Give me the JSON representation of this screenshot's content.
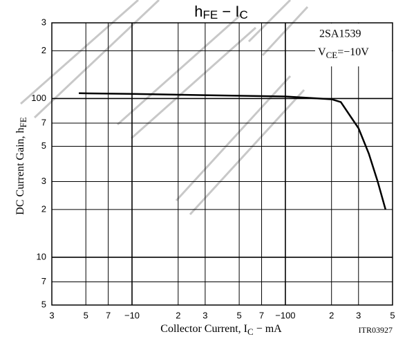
{
  "chart_data": {
    "type": "line",
    "title": [
      "h",
      "FE",
      " − I",
      "C"
    ],
    "annotations": {
      "device": "2SA1539",
      "condition": [
        "V",
        "CE",
        "=−10V"
      ]
    },
    "y_label": [
      "DC Current Gain, h",
      "FE"
    ],
    "x_label": [
      "Collector Current, I",
      "C",
      " − mA"
    ],
    "code": "ITR03927",
    "log_x": true,
    "log_y": true,
    "grid": true,
    "xlim": [
      -3,
      -500
    ],
    "xticks": [
      {
        "value": -3,
        "label": "3"
      },
      {
        "value": -5,
        "label": "5"
      },
      {
        "value": -7,
        "label": "7"
      },
      {
        "value": -10,
        "label": "−10"
      },
      {
        "value": -20,
        "label": "2"
      },
      {
        "value": -30,
        "label": "3"
      },
      {
        "value": -50,
        "label": "5"
      },
      {
        "value": -70,
        "label": "7"
      },
      {
        "value": -100,
        "label": "−100"
      },
      {
        "value": -200,
        "label": "2"
      },
      {
        "value": -300,
        "label": "3"
      },
      {
        "value": -500,
        "label": "5"
      }
    ],
    "ylim": [
      5,
      300
    ],
    "yticks": [
      5,
      7,
      10,
      {
        "value": 20,
        "label": "2"
      },
      {
        "value": 30,
        "label": "3"
      },
      {
        "value": 50,
        "label": "5"
      },
      {
        "value": 70,
        "label": "7"
      },
      100,
      {
        "value": 200,
        "label": "2"
      },
      {
        "value": 300,
        "label": "3"
      }
    ],
    "series": [
      {
        "name": "hFE",
        "color": "#000000",
        "x": [
          -4.5,
          -10,
          -30,
          -100,
          -200,
          -230,
          -300,
          -350,
          -400,
          -450
        ],
        "values": [
          108,
          107,
          105,
          103,
          99,
          95,
          65,
          45,
          30,
          20
        ]
      }
    ]
  }
}
